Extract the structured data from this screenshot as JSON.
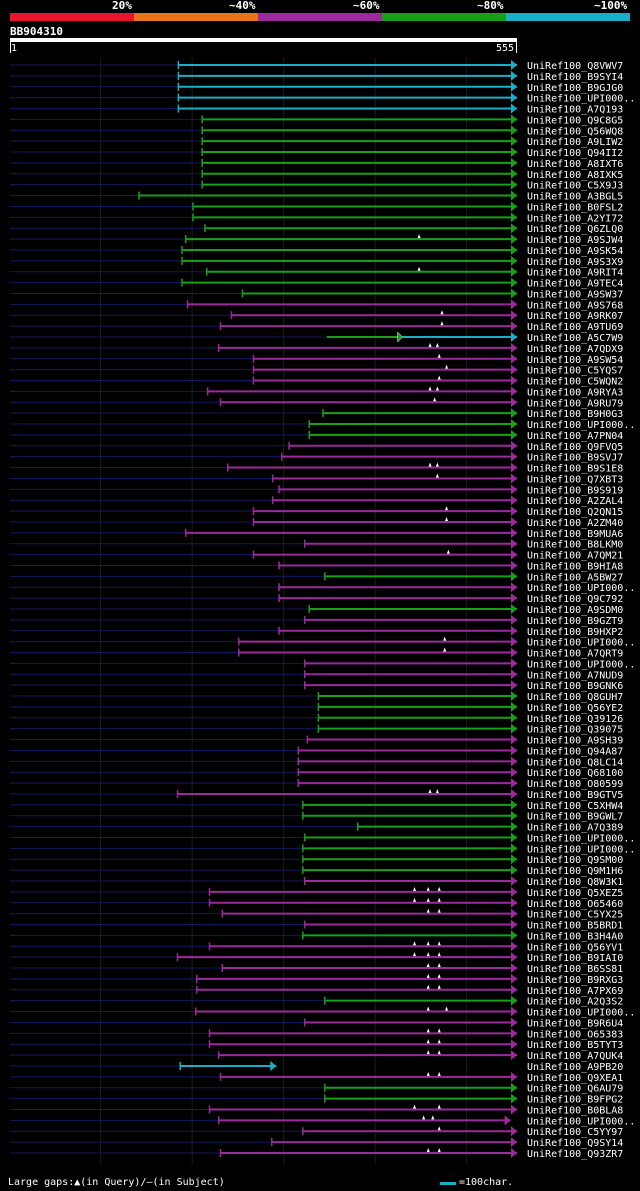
{
  "legend": {
    "labels": [
      "20%",
      "~40%",
      "~60%",
      "~80%",
      "~100%"
    ],
    "colors": [
      "#e8142c",
      "#e8741c",
      "#9c2a9c",
      "#18a018",
      "#18b0c8"
    ]
  },
  "query": {
    "id": "BB904310",
    "start": "1",
    "end": "555"
  },
  "footer": {
    "gaps": "Large gaps:▲(in Query)/–(in Subject)",
    "scale": "=100char."
  },
  "chart_data": {
    "type": "alignment",
    "x_range": [
      1,
      555
    ],
    "hits": [
      {
        "name": "UniRef100_Q8VWV7",
        "start": 185,
        "color": "#18b0c8",
        "arrow": true
      },
      {
        "name": "UniRef100_B9SYI4",
        "start": 185,
        "color": "#18b0c8",
        "arrow": true
      },
      {
        "name": "UniRef100_B9GJG0",
        "start": 185,
        "color": "#18b0c8",
        "arrow": true
      },
      {
        "name": "UniRef100_UPI000..",
        "start": 185,
        "color": "#18b0c8",
        "arrow": true
      },
      {
        "name": "UniRef100_A7Q193",
        "start": 185,
        "color": "#18b0c8",
        "arrow": true
      },
      {
        "name": "UniRef100_Q9C8G5",
        "start": 211,
        "color": "#18a018",
        "arrow": true
      },
      {
        "name": "UniRef100_Q56WQ8",
        "start": 211,
        "color": "#18a018",
        "arrow": true
      },
      {
        "name": "UniRef100_A9LIW2",
        "start": 211,
        "color": "#18a018",
        "arrow": true
      },
      {
        "name": "UniRef100_Q94II2",
        "start": 211,
        "color": "#18a018",
        "arrow": true
      },
      {
        "name": "UniRef100_A8IXT6",
        "start": 211,
        "color": "#18a018",
        "arrow": true
      },
      {
        "name": "UniRef100_A8IXK5",
        "start": 211,
        "color": "#18a018",
        "arrow": true
      },
      {
        "name": "UniRef100_C5X9J3",
        "start": 211,
        "color": "#18a018",
        "arrow": true
      },
      {
        "name": "UniRef100_A3BGL5",
        "start": 142,
        "color": "#18a018",
        "arrow": true
      },
      {
        "name": "UniRef100_B0FSL2",
        "start": 201,
        "color": "#18a018",
        "arrow": true
      },
      {
        "name": "UniRef100_A2YI72",
        "start": 201,
        "color": "#18a018",
        "arrow": true
      },
      {
        "name": "UniRef100_Q6ZLQ0",
        "start": 214,
        "color": "#18a018",
        "arrow": true
      },
      {
        "name": "UniRef100_A9SJW4",
        "start": 193,
        "color": "#18a018",
        "arrow": true,
        "marks": [
          448
        ]
      },
      {
        "name": "UniRef100_A9SK54",
        "start": 189,
        "color": "#18a018",
        "arrow": true
      },
      {
        "name": "UniRef100_A9S3X9",
        "start": 189,
        "color": "#18a018",
        "arrow": true
      },
      {
        "name": "UniRef100_A9RIT4",
        "start": 216,
        "color": "#18a018",
        "arrow": true,
        "marks": [
          448
        ]
      },
      {
        "name": "UniRef100_A9TEC4",
        "start": 189,
        "color": "#18a018",
        "arrow": true
      },
      {
        "name": "UniRef100_A9SW37",
        "start": 255,
        "color": "#18a018",
        "arrow": true
      },
      {
        "name": "UniRef100_A9S768",
        "start": 195,
        "color": "#9c2a9c",
        "arrow": true
      },
      {
        "name": "UniRef100_A9RK07",
        "start": 243,
        "color": "#9c2a9c",
        "arrow": true,
        "marks": [
          473
        ]
      },
      {
        "name": "UniRef100_A9TU69",
        "start": 231,
        "color": "#9c2a9c",
        "arrow": true,
        "marks": [
          473
        ]
      },
      {
        "name": "UniRef100_A5C7W9",
        "start": 347,
        "color": "#18a018",
        "arrow": false,
        "mid": 430,
        "mid_color": "#18b0c8"
      },
      {
        "name": "UniRef100_A7QDX9",
        "start": 229,
        "color": "#9c2a9c",
        "arrow": true,
        "marks": [
          460,
          468
        ]
      },
      {
        "name": "UniRef100_A9SW54",
        "start": 267,
        "color": "#9c2a9c",
        "arrow": true,
        "marks": [
          470
        ]
      },
      {
        "name": "UniRef100_C5YQS7",
        "start": 267,
        "color": "#9c2a9c",
        "arrow": true,
        "marks": [
          478
        ]
      },
      {
        "name": "UniRef100_C5WQN2",
        "start": 267,
        "color": "#9c2a9c",
        "arrow": true,
        "marks": [
          470
        ]
      },
      {
        "name": "UniRef100_A9RYA3",
        "start": 217,
        "color": "#9c2a9c",
        "arrow": true,
        "marks": [
          460,
          468
        ]
      },
      {
        "name": "UniRef100_A9RU79",
        "start": 231,
        "color": "#9c2a9c",
        "arrow": true,
        "marks": [
          465
        ]
      },
      {
        "name": "UniRef100_B9H0G3",
        "start": 343,
        "color": "#18a018",
        "arrow": true
      },
      {
        "name": "UniRef100_UPI000..",
        "start": 328,
        "color": "#18a018",
        "arrow": true
      },
      {
        "name": "UniRef100_A7PN04",
        "start": 328,
        "color": "#18a018",
        "arrow": true
      },
      {
        "name": "UniRef100_Q9FVQ5",
        "start": 306,
        "color": "#9c2a9c",
        "arrow": true
      },
      {
        "name": "UniRef100_B9SVJ7",
        "start": 298,
        "color": "#9c2a9c",
        "arrow": true
      },
      {
        "name": "UniRef100_B9S1E8",
        "start": 239,
        "color": "#9c2a9c",
        "arrow": true,
        "marks": [
          460,
          468
        ]
      },
      {
        "name": "UniRef100_Q7XBT3",
        "start": 288,
        "color": "#9c2a9c",
        "arrow": true,
        "marks": [
          468
        ]
      },
      {
        "name": "UniRef100_B9S919",
        "start": 295,
        "color": "#9c2a9c",
        "arrow": true
      },
      {
        "name": "UniRef100_A2ZAL4",
        "start": 288,
        "color": "#9c2a9c",
        "arrow": true
      },
      {
        "name": "UniRef100_Q2QN15",
        "start": 267,
        "color": "#9c2a9c",
        "arrow": true,
        "marks": [
          478
        ]
      },
      {
        "name": "UniRef100_A2ZM40",
        "start": 267,
        "color": "#9c2a9c",
        "arrow": true,
        "marks": [
          478
        ]
      },
      {
        "name": "UniRef100_B9MUA6",
        "start": 193,
        "color": "#9c2a9c",
        "arrow": true
      },
      {
        "name": "UniRef100_B8LKM0",
        "start": 323,
        "color": "#9c2a9c",
        "arrow": false
      },
      {
        "name": "UniRef100_A7QM21",
        "start": 267,
        "color": "#9c2a9c",
        "arrow": true,
        "marks": [
          480
        ]
      },
      {
        "name": "UniRef100_B9HIA8",
        "start": 295,
        "color": "#9c2a9c",
        "arrow": true
      },
      {
        "name": "UniRef100_A5BW27",
        "start": 345,
        "color": "#18a018",
        "arrow": true
      },
      {
        "name": "UniRef100_UPI000..",
        "start": 295,
        "color": "#9c2a9c",
        "arrow": true
      },
      {
        "name": "UniRef100_Q9C792",
        "start": 295,
        "color": "#9c2a9c",
        "arrow": true
      },
      {
        "name": "UniRef100_A9SDM0",
        "start": 328,
        "color": "#18a018",
        "arrow": true
      },
      {
        "name": "UniRef100_B9GZT9",
        "start": 323,
        "color": "#9c2a9c",
        "arrow": true
      },
      {
        "name": "UniRef100_B9HXP2",
        "start": 295,
        "color": "#9c2a9c",
        "arrow": true
      },
      {
        "name": "UniRef100_UPI000..",
        "start": 251,
        "color": "#9c2a9c",
        "arrow": true,
        "marks": [
          476
        ]
      },
      {
        "name": "UniRef100_A7QRT9",
        "start": 251,
        "color": "#9c2a9c",
        "arrow": true,
        "marks": [
          476
        ]
      },
      {
        "name": "UniRef100_UPI000..",
        "start": 323,
        "color": "#9c2a9c",
        "arrow": true
      },
      {
        "name": "UniRef100_A7NUD9",
        "start": 323,
        "color": "#9c2a9c",
        "arrow": true
      },
      {
        "name": "UniRef100_B9GNK6",
        "start": 323,
        "color": "#9c2a9c",
        "arrow": true
      },
      {
        "name": "UniRef100_Q8GUH7",
        "start": 338,
        "color": "#18a018",
        "arrow": true
      },
      {
        "name": "UniRef100_Q56YE2",
        "start": 338,
        "color": "#18a018",
        "arrow": true
      },
      {
        "name": "UniRef100_Q39126",
        "start": 338,
        "color": "#18a018",
        "arrow": true
      },
      {
        "name": "UniRef100_Q39075",
        "start": 338,
        "color": "#18a018",
        "arrow": true
      },
      {
        "name": "UniRef100_A9SH39",
        "start": 326,
        "color": "#9c2a9c",
        "arrow": true
      },
      {
        "name": "UniRef100_Q94A87",
        "start": 316,
        "color": "#9c2a9c",
        "arrow": true
      },
      {
        "name": "UniRef100_Q8LC14",
        "start": 316,
        "color": "#9c2a9c",
        "arrow": true
      },
      {
        "name": "UniRef100_Q68100",
        "start": 316,
        "color": "#9c2a9c",
        "arrow": true
      },
      {
        "name": "UniRef100_O80599",
        "start": 316,
        "color": "#9c2a9c",
        "arrow": true
      },
      {
        "name": "UniRef100_B9GTV5",
        "start": 184,
        "color": "#9c2a9c",
        "arrow": true,
        "marks": [
          460,
          468
        ]
      },
      {
        "name": "UniRef100_C5XHW4",
        "start": 321,
        "color": "#18a018",
        "arrow": true
      },
      {
        "name": "UniRef100_B9GWL7",
        "start": 321,
        "color": "#18a018",
        "arrow": true
      },
      {
        "name": "UniRef100_A7Q389",
        "start": 381,
        "color": "#18a018",
        "arrow": true
      },
      {
        "name": "UniRef100_UPI000..",
        "start": 323,
        "color": "#18a018",
        "arrow": true
      },
      {
        "name": "UniRef100_UPI000..",
        "start": 321,
        "color": "#18a018",
        "arrow": true
      },
      {
        "name": "UniRef100_Q9SM00",
        "start": 321,
        "color": "#18a018",
        "arrow": true
      },
      {
        "name": "UniRef100_Q9M1H6",
        "start": 321,
        "color": "#18a018",
        "arrow": true
      },
      {
        "name": "UniRef100_Q8W3K1",
        "start": 323,
        "color": "#9c2a9c",
        "arrow": true
      },
      {
        "name": "UniRef100_Q5XEZ5",
        "start": 219,
        "color": "#9c2a9c",
        "arrow": true,
        "marks": [
          443,
          458,
          470
        ]
      },
      {
        "name": "UniRef100_O65460",
        "start": 219,
        "color": "#9c2a9c",
        "arrow": true,
        "marks": [
          443,
          458,
          470
        ]
      },
      {
        "name": "UniRef100_C5YX25",
        "start": 233,
        "color": "#9c2a9c",
        "arrow": true,
        "marks": [
          458,
          470
        ]
      },
      {
        "name": "UniRef100_B5BRD1",
        "start": 323,
        "color": "#9c2a9c",
        "arrow": true
      },
      {
        "name": "UniRef100_B3H4A0",
        "start": 321,
        "color": "#18a018",
        "arrow": true
      },
      {
        "name": "UniRef100_Q56YV1",
        "start": 219,
        "color": "#9c2a9c",
        "arrow": true,
        "marks": [
          443,
          458,
          470
        ]
      },
      {
        "name": "UniRef100_B9IAI0",
        "start": 184,
        "color": "#9c2a9c",
        "arrow": true,
        "marks": [
          443,
          458,
          470
        ]
      },
      {
        "name": "UniRef100_B6SS81",
        "start": 233,
        "color": "#9c2a9c",
        "arrow": true,
        "marks": [
          458,
          470
        ]
      },
      {
        "name": "UniRef100_B9RXG3",
        "start": 205,
        "color": "#9c2a9c",
        "arrow": true,
        "marks": [
          458,
          470
        ]
      },
      {
        "name": "UniRef100_A7PX69",
        "start": 205,
        "color": "#9c2a9c",
        "arrow": true,
        "marks": [
          458,
          470
        ]
      },
      {
        "name": "UniRef100_A2Q3S2",
        "start": 345,
        "color": "#18a018",
        "arrow": true
      },
      {
        "name": "UniRef100_UPI000..",
        "start": 204,
        "color": "#9c2a9c",
        "arrow": true,
        "marks": [
          458,
          478
        ]
      },
      {
        "name": "UniRef100_B9R6U4",
        "start": 323,
        "color": "#9c2a9c",
        "arrow": true
      },
      {
        "name": "UniRef100_O65383",
        "start": 219,
        "color": "#9c2a9c",
        "arrow": true,
        "marks": [
          458,
          470
        ]
      },
      {
        "name": "UniRef100_B5TYT3",
        "start": 219,
        "color": "#9c2a9c",
        "arrow": true,
        "marks": [
          458,
          470
        ]
      },
      {
        "name": "UniRef100_A7QUK4",
        "start": 229,
        "color": "#9c2a9c",
        "arrow": true,
        "marks": [
          458,
          470
        ]
      },
      {
        "name": "UniRef100_A9PB20",
        "start": 187,
        "end": 292,
        "color": "#18b0c8",
        "arrow": true
      },
      {
        "name": "UniRef100_Q9XEA1",
        "start": 231,
        "color": "#9c2a9c",
        "arrow": true,
        "marks": [
          458,
          470
        ]
      },
      {
        "name": "UniRef100_Q6AU79",
        "start": 345,
        "color": "#18a018",
        "arrow": true
      },
      {
        "name": "UniRef100_B9FPG2",
        "start": 345,
        "color": "#18a018",
        "arrow": true
      },
      {
        "name": "UniRef100_B0BLA8",
        "start": 219,
        "color": "#9c2a9c",
        "arrow": true,
        "marks": [
          443,
          470
        ]
      },
      {
        "name": "UniRef100_UPI000..",
        "start": 229,
        "color": "#9c2a9c",
        "arrow": true,
        "end": 548,
        "marks": [
          453,
          463
        ]
      },
      {
        "name": "UniRef100_C5YY97",
        "start": 321,
        "color": "#9c2a9c",
        "arrow": true,
        "marks": [
          470
        ]
      },
      {
        "name": "UniRef100_Q9SY14",
        "start": 287,
        "color": "#9c2a9c",
        "arrow": true
      },
      {
        "name": "UniRef100_Q93ZR7",
        "start": 231,
        "color": "#9c2a9c",
        "arrow": true,
        "marks": [
          458,
          470
        ]
      }
    ]
  }
}
